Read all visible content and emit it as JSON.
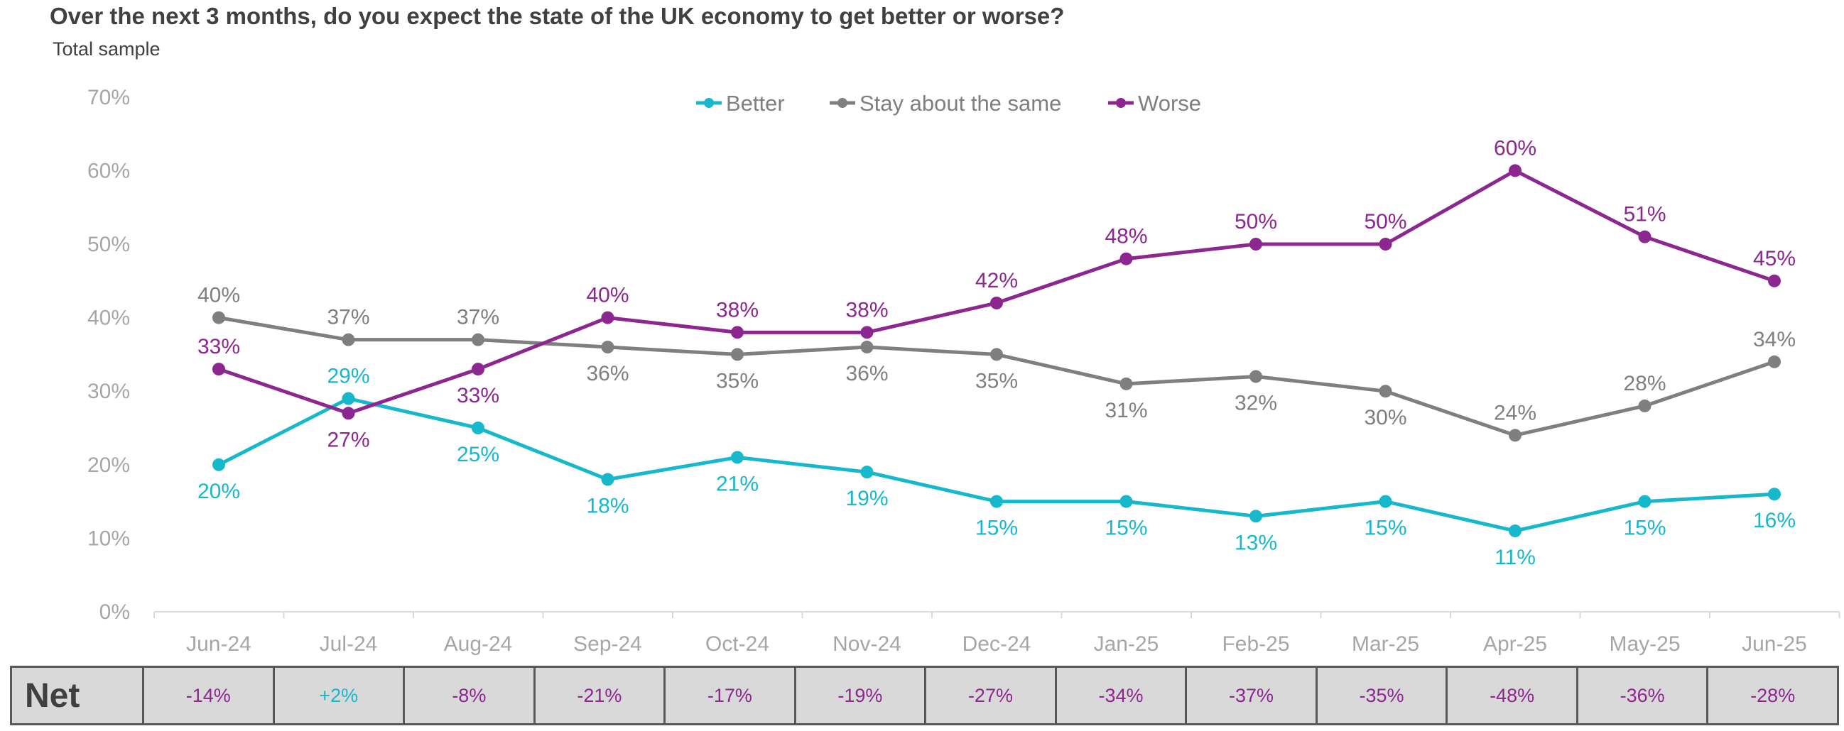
{
  "chart_data": {
    "type": "line",
    "title": "Over the next 3 months, do you expect the state of the UK economy to get better or worse?",
    "subtitle": "Total sample",
    "categories": [
      "Jun-24",
      "Jul-24",
      "Aug-24",
      "Sep-24",
      "Oct-24",
      "Nov-24",
      "Dec-24",
      "Jan-25",
      "Feb-25",
      "Mar-25",
      "Apr-25",
      "May-25",
      "Jun-25"
    ],
    "ylim": [
      0,
      70
    ],
    "yticks": [
      0,
      10,
      20,
      30,
      40,
      50,
      60,
      70
    ],
    "ytick_labels": [
      "0%",
      "10%",
      "20%",
      "30%",
      "40%",
      "50%",
      "60%",
      "70%"
    ],
    "legend_position": "top-center",
    "series": [
      {
        "name": "Better",
        "color": "#17b8cc",
        "values": [
          20,
          29,
          25,
          18,
          21,
          19,
          15,
          15,
          13,
          15,
          11,
          15,
          16
        ],
        "label_positions": [
          "below",
          "above",
          "below",
          "below",
          "below",
          "below",
          "below",
          "below",
          "below",
          "below",
          "below",
          "below",
          "below"
        ]
      },
      {
        "name": "Stay about the same",
        "color": "#7f7f80",
        "values": [
          40,
          37,
          37,
          36,
          35,
          36,
          35,
          31,
          32,
          30,
          24,
          28,
          34
        ],
        "label_positions": [
          "above",
          "above",
          "above",
          "below",
          "below",
          "below",
          "below",
          "below",
          "below",
          "below",
          "above",
          "above",
          "above"
        ]
      },
      {
        "name": "Worse",
        "color": "#8d2790",
        "values": [
          33,
          27,
          33,
          40,
          38,
          38,
          42,
          48,
          50,
          50,
          60,
          51,
          45
        ],
        "label_positions": [
          "above",
          "below",
          "below",
          "above",
          "above",
          "above",
          "above",
          "above",
          "above",
          "above",
          "above",
          "above",
          "above"
        ]
      }
    ],
    "net": {
      "label": "Net",
      "values": [
        "-14%",
        "+2%",
        "-8%",
        "-21%",
        "-17%",
        "-19%",
        "-27%",
        "-34%",
        "-37%",
        "-35%",
        "-48%",
        "-36%",
        "-28%"
      ],
      "colors": [
        "#8d2790",
        "#17b8cc",
        "#8d2790",
        "#8d2790",
        "#8d2790",
        "#8d2790",
        "#8d2790",
        "#8d2790",
        "#8d2790",
        "#8d2790",
        "#8d2790",
        "#8d2790",
        "#8d2790"
      ]
    }
  }
}
